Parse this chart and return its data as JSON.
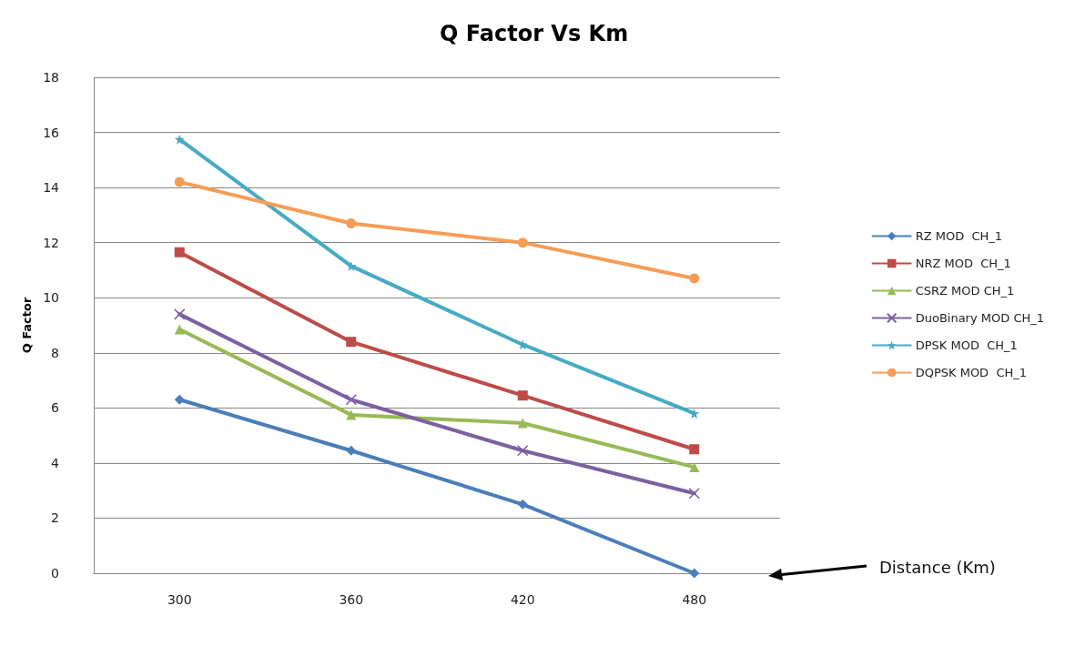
{
  "chart_data": {
    "type": "line",
    "title": "Q Factor Vs Km",
    "annotations": [
      "Distance (Km)"
    ],
    "ylabel": "Q Factor",
    "categories": [
      "300",
      "360",
      "420",
      "480"
    ],
    "ylim": [
      0,
      18
    ],
    "yticks": [
      0,
      2,
      4,
      6,
      8,
      10,
      12,
      14,
      16,
      18
    ],
    "grid": "y",
    "legend": "right",
    "line_style": "solid",
    "series": [
      {
        "name": "RZ MOD  CH_1",
        "color": "#4a7ebb",
        "marker": "diamond",
        "values": [
          6.3,
          4.45,
          2.5,
          0
        ]
      },
      {
        "name": "NRZ MOD  CH_1",
        "color": "#be4b48",
        "marker": "square",
        "values": [
          11.65,
          8.4,
          6.45,
          4.5
        ]
      },
      {
        "name": "CSRZ MOD CH_1",
        "color": "#98b954",
        "marker": "triangle",
        "values": [
          8.85,
          5.75,
          5.45,
          3.85
        ]
      },
      {
        "name": "DuoBinary MOD CH_1",
        "color": "#7d60a0",
        "marker": "cross",
        "values": [
          9.4,
          6.3,
          4.45,
          2.9
        ]
      },
      {
        "name": "DPSK MOD  CH_1",
        "color": "#46aac5",
        "marker": "star",
        "values": [
          15.75,
          11.15,
          8.3,
          5.8
        ]
      },
      {
        "name": "DQPSK MOD  CH_1",
        "color": "#f59d56",
        "marker": "circle",
        "values": [
          14.2,
          12.7,
          12.0,
          10.7
        ]
      }
    ]
  }
}
